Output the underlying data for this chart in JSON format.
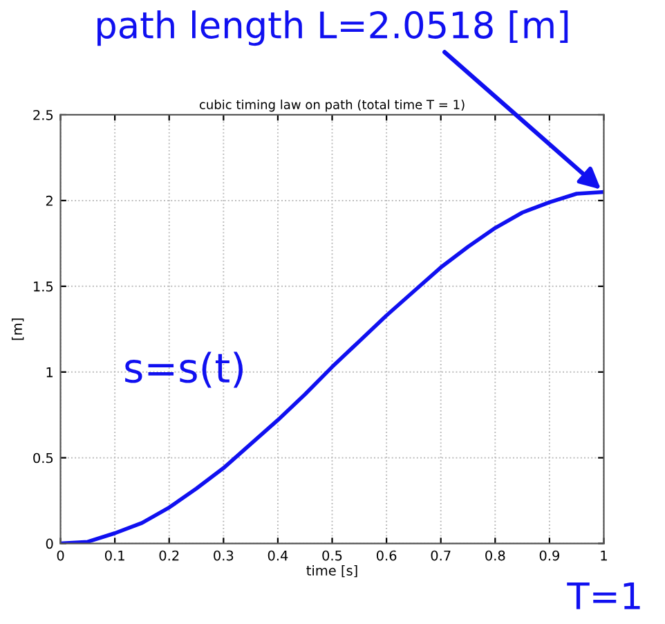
{
  "chart_data": {
    "type": "line",
    "title": "cubic timing law on path (total time T = 1)",
    "xlabel": "time [s]",
    "ylabel": "[m]",
    "x": [
      0,
      0.05,
      0.1,
      0.15,
      0.2,
      0.25,
      0.3,
      0.35,
      0.4,
      0.45,
      0.5,
      0.55,
      0.6,
      0.65,
      0.7,
      0.75,
      0.8,
      0.85,
      0.9,
      0.95,
      1
    ],
    "series": [
      {
        "color": "#1010f0",
        "values": [
          0,
          0.01,
          0.06,
          0.12,
          0.21,
          0.32,
          0.44,
          0.58,
          0.72,
          0.87,
          1.03,
          1.18,
          1.33,
          1.47,
          1.61,
          1.73,
          1.84,
          1.93,
          1.99,
          2.04,
          2.05
        ]
      }
    ],
    "xlim": [
      0,
      1
    ],
    "ylim": [
      0,
      2.5
    ],
    "xticks": [
      0,
      0.1,
      0.2,
      0.3,
      0.4,
      0.5,
      0.6,
      0.7,
      0.8,
      0.9,
      1
    ],
    "yticks": [
      0,
      0.5,
      1,
      1.5,
      2,
      2.5
    ],
    "grid": true,
    "line_style": "solid",
    "marker": "none",
    "annotations": [
      {
        "text": "path length L=2.0518 [m]",
        "x": 1,
        "y": 2.05
      },
      "s=s(t)",
      "T=1"
    ]
  }
}
